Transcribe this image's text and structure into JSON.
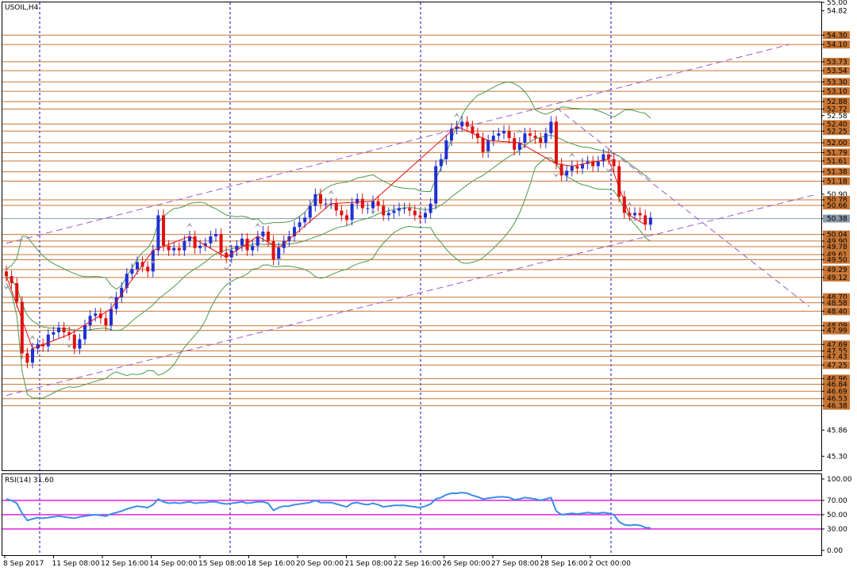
{
  "chart_title": "USOIL,H4",
  "colors": {
    "background": "#ffffff",
    "frame": "#000000",
    "grid": "#0000cc",
    "level_line": "#c87533",
    "level_label_bg": "#c87533",
    "current_label_bg": "#8a9aa8",
    "bull_candle": "#1f2fd6",
    "bear_candle": "#e01010",
    "zigzag": "#e01010",
    "bands": "#4a9a4a",
    "channel": "#9b59c8",
    "rsi_line": "#3a8ee6",
    "rsi_levels": "#e020e0",
    "fractal": "#a0a0a0"
  },
  "chart_data": {
    "type": "candlestick",
    "symbol": "USOIL",
    "timeframe": "H4",
    "ylim": [
      45.0,
      55.0
    ],
    "price_axis_labels": [
      "55.00",
      "54.82",
      "54.30",
      "54.10",
      "53.73",
      "53.54",
      "53.30",
      "53.10",
      "52.88",
      "52.72",
      "52.58",
      "52.40",
      "52.25",
      "52.00",
      "51.79",
      "51.61",
      "51.38",
      "51.18",
      "50.90",
      "50.78",
      "50.66",
      "50.38",
      "50.04",
      "49.90",
      "49.78",
      "49.61",
      "49.50",
      "49.29",
      "49.12",
      "48.70",
      "48.58",
      "48.40",
      "48.09",
      "47.99",
      "47.69",
      "47.55",
      "47.43",
      "47.25",
      "46.96",
      "46.84",
      "46.69",
      "46.53",
      "46.38",
      "45.86",
      "45.30"
    ],
    "horizontal_levels": [
      54.3,
      54.1,
      53.73,
      53.54,
      53.3,
      53.1,
      52.88,
      52.72,
      52.4,
      52.25,
      52.0,
      51.79,
      51.61,
      51.38,
      51.18,
      50.78,
      50.66,
      50.04,
      49.9,
      49.78,
      49.61,
      49.5,
      49.29,
      49.12,
      48.7,
      48.58,
      48.4,
      48.09,
      47.99,
      47.69,
      47.55,
      47.43,
      47.25,
      46.96,
      46.84,
      46.69,
      46.53,
      46.38
    ],
    "current_price": "50.38",
    "time_labels": [
      "8 Sep 2017",
      "11 Sep 08:00",
      "12 Sep 16:00",
      "14 Sep 00:00",
      "15 Sep 08:00",
      "18 Sep 16:00",
      "20 Sep 00:00",
      "21 Sep 08:00",
      "22 Sep 16:00",
      "26 Sep 00:00",
      "27 Sep 08:00",
      "28 Sep 16:00",
      "2 Oct 00:00"
    ],
    "close": [
      49.15,
      49.0,
      48.6,
      47.5,
      47.3,
      47.6,
      47.7,
      47.65,
      47.9,
      47.95,
      48.05,
      47.95,
      47.9,
      47.6,
      47.8,
      48.1,
      48.3,
      48.35,
      48.25,
      48.1,
      48.45,
      48.7,
      48.9,
      49.2,
      49.3,
      49.45,
      49.35,
      49.25,
      49.7,
      50.45,
      49.8,
      49.7,
      49.75,
      49.7,
      49.9,
      50.0,
      49.75,
      49.8,
      49.85,
      50.0,
      50.05,
      49.65,
      49.55,
      49.7,
      49.8,
      49.95,
      49.7,
      49.8,
      50.0,
      50.1,
      49.9,
      49.5,
      49.75,
      49.9,
      50.0,
      50.2,
      50.3,
      50.4,
      50.65,
      50.9,
      50.7,
      50.7,
      50.7,
      50.55,
      50.45,
      50.35,
      50.7,
      50.8,
      50.6,
      50.6,
      50.75,
      50.65,
      50.45,
      50.5,
      50.55,
      50.6,
      50.6,
      50.55,
      50.45,
      50.4,
      50.5,
      50.7,
      51.5,
      51.65,
      52.05,
      52.3,
      52.35,
      52.45,
      52.35,
      52.2,
      52.1,
      51.8,
      52.05,
      52.15,
      52.2,
      52.25,
      52.1,
      51.85,
      52.0,
      52.2,
      52.15,
      52.1,
      52.0,
      52.2,
      52.45,
      51.55,
      51.3,
      51.4,
      51.5,
      51.45,
      51.55,
      51.6,
      51.5,
      51.6,
      51.75,
      51.65,
      51.5,
      50.85,
      50.5,
      50.45,
      50.5,
      50.45,
      50.25,
      50.4
    ]
  },
  "rsi": {
    "label": "RSI(14) 31.60",
    "levels_drawn": [
      70,
      50,
      30
    ],
    "axis_labels": [
      "100.00",
      "70.00",
      "50.00",
      "30.00",
      "0.00"
    ],
    "values": [
      72,
      70,
      66,
      52,
      42,
      44,
      46,
      45,
      46,
      47,
      48,
      47,
      46,
      45,
      47,
      48,
      49,
      50,
      49,
      48,
      51,
      53,
      55,
      58,
      60,
      62,
      61,
      60,
      64,
      72,
      68,
      66,
      67,
      66,
      67,
      68,
      66,
      67,
      67,
      68,
      68,
      66,
      65,
      66,
      67,
      68,
      66,
      67,
      68,
      68,
      66,
      56,
      60,
      62,
      62,
      64,
      65,
      66,
      67,
      70,
      67,
      67,
      67,
      65,
      63,
      61,
      66,
      67,
      65,
      64,
      66,
      64,
      61,
      62,
      63,
      63,
      63,
      62,
      61,
      60,
      62,
      65,
      72,
      74,
      78,
      80,
      80,
      81,
      80,
      77,
      75,
      72,
      73,
      74,
      75,
      75,
      74,
      71,
      72,
      74,
      73,
      72,
      70,
      72,
      74,
      55,
      50,
      51,
      52,
      51,
      52,
      53,
      52,
      52,
      53,
      52,
      50,
      40,
      36,
      35,
      36,
      35,
      32,
      31.6
    ]
  }
}
